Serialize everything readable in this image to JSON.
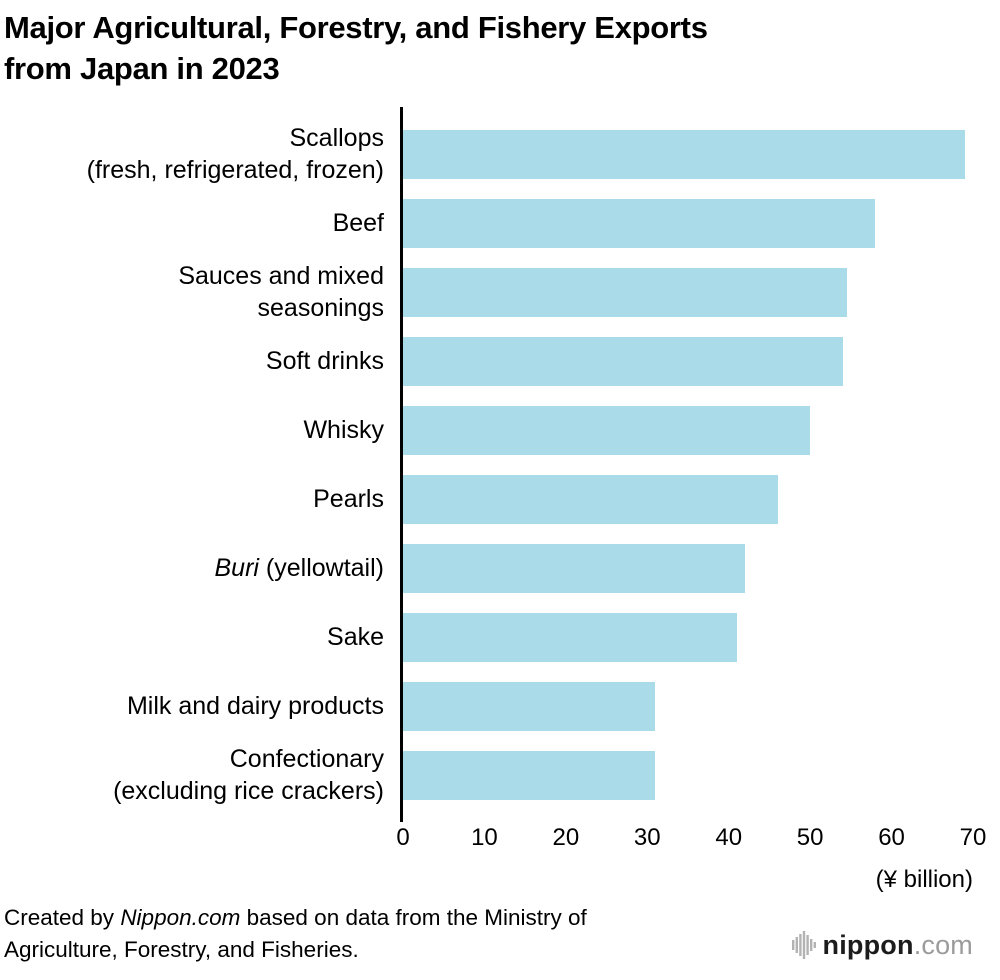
{
  "title": {
    "lines": [
      "Major Agricultural, Forestry, and Fishery Exports",
      "from Japan in 2023"
    ]
  },
  "chart_data": {
    "type": "bar",
    "orientation": "horizontal",
    "title": "Major Agricultural, Forestry, and Fishery Exports from Japan in 2023",
    "unit_label": "(¥ billion)",
    "xlim": [
      0,
      70
    ],
    "xticks": [
      0,
      10,
      20,
      30,
      40,
      50,
      60,
      70
    ],
    "bar_color": "#a9dbe8",
    "bars": [
      {
        "label_lines": [
          "Scallops",
          "(fresh, refrigerated, frozen)"
        ],
        "value": 69
      },
      {
        "label_lines": [
          "Beef"
        ],
        "value": 58
      },
      {
        "label_lines": [
          "Sauces and mixed",
          "seasonings"
        ],
        "value": 54.5
      },
      {
        "label_lines": [
          "Soft drinks"
        ],
        "value": 54
      },
      {
        "label_lines": [
          "Whisky"
        ],
        "value": 50
      },
      {
        "label_lines": [
          "Pearls"
        ],
        "value": 46
      },
      {
        "label_lines": [
          "Buri (yellowtail)"
        ],
        "value": 42,
        "italic_prefix": "Buri"
      },
      {
        "label_lines": [
          "Sake"
        ],
        "value": 41
      },
      {
        "label_lines": [
          "Milk and dairy products"
        ],
        "value": 31
      },
      {
        "label_lines": [
          "Confectionary",
          "(excluding rice crackers)"
        ],
        "value": 31
      }
    ]
  },
  "footer": {
    "credit": {
      "prefix": "Created by ",
      "source": "Nippon.com",
      "rest": " based on data from the Ministry of",
      "line2": "Agriculture, Forestry, and Fisheries."
    },
    "logo": {
      "name": "nippon",
      "tld": ".com",
      "icon_color": "#b3b3b3"
    }
  }
}
